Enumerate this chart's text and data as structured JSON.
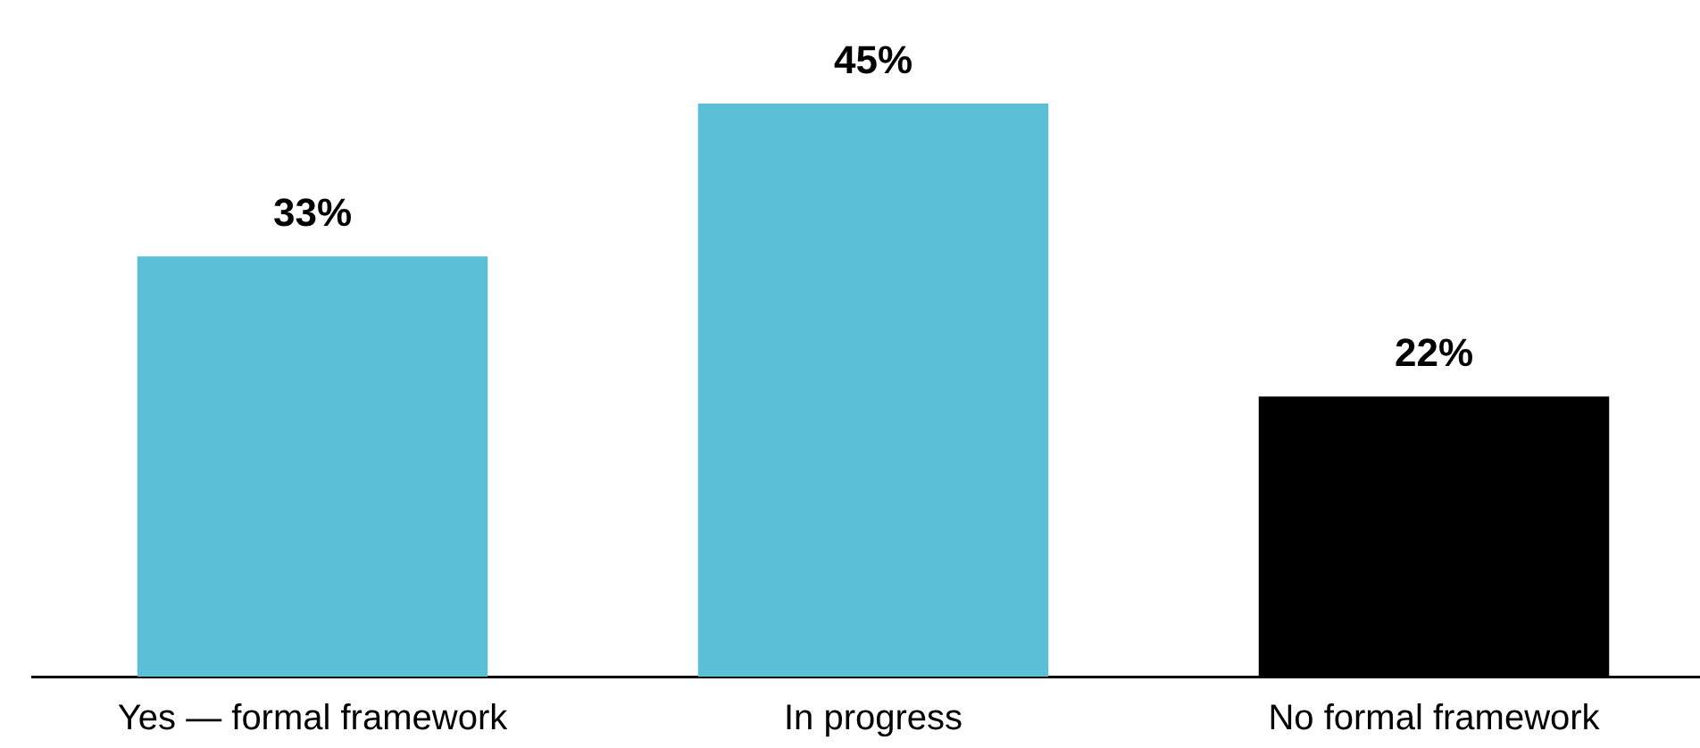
{
  "chart_data": {
    "type": "bar",
    "categories": [
      "Yes — formal framework",
      "In progress",
      "No formal framework"
    ],
    "values": [
      33,
      45,
      22
    ],
    "colors": [
      "#5bc0d6",
      "#5bc0d6",
      "#000000"
    ],
    "value_labels": [
      "33%",
      "45%",
      "22%"
    ],
    "grid": false,
    "legend": false,
    "tick_labels": "x"
  }
}
